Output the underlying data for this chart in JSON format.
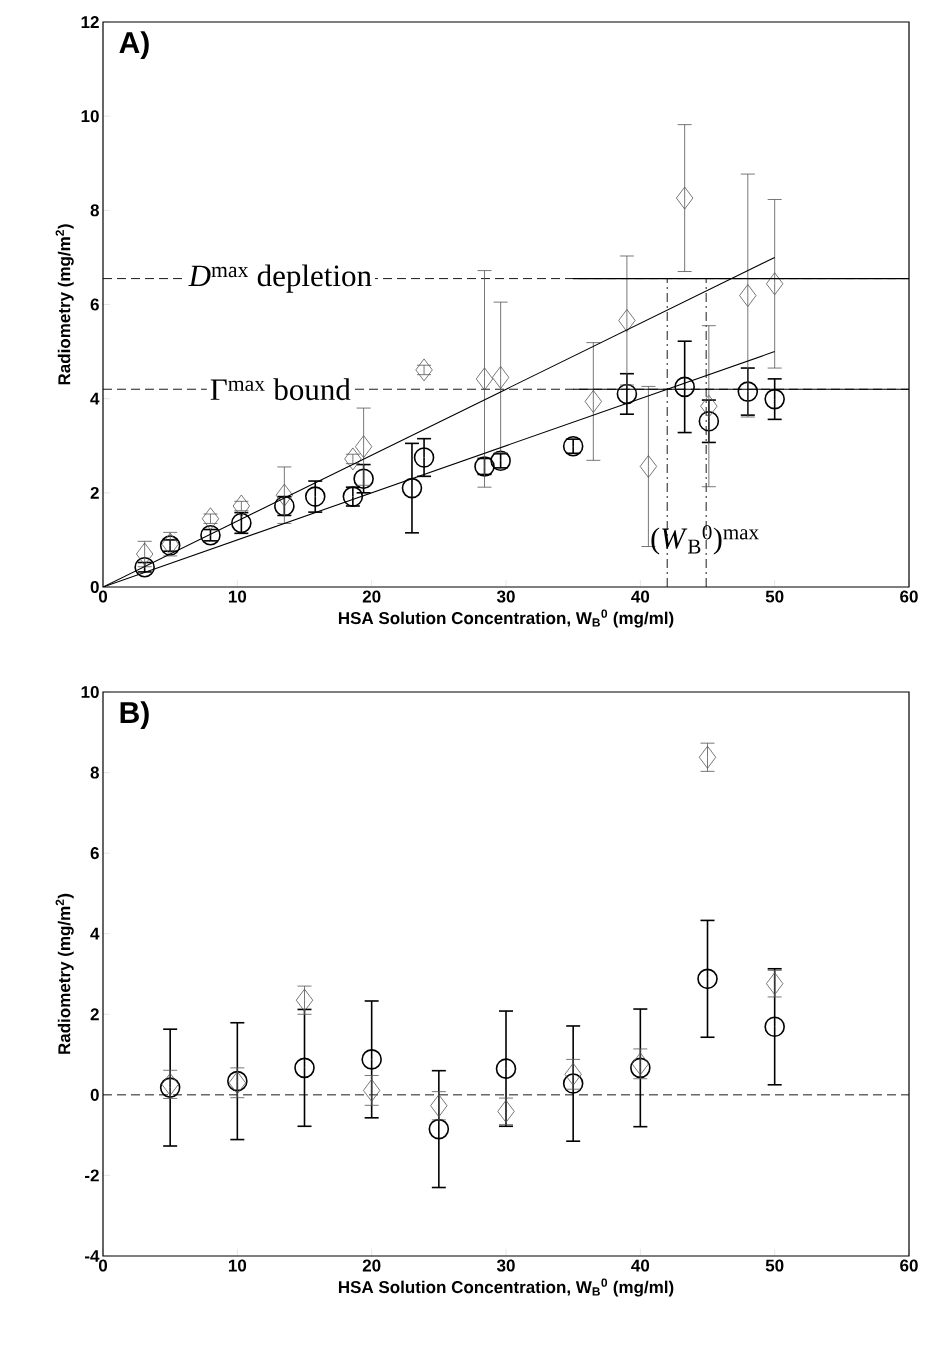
{
  "chart_data": [
    {
      "type": "scatter",
      "xlabel": "HSA Solution Concentration, W$_{B}$$^{0}$ (mg/ml)",
      "ylabel": "Radiometry (mg/m$^{2}$)",
      "xlim": [
        0,
        60
      ],
      "ylim": [
        0,
        12
      ],
      "xticks": [
        0,
        10,
        20,
        30,
        40,
        50,
        60
      ],
      "yticks": [
        0,
        2,
        4,
        6,
        8,
        10,
        12
      ],
      "series": [
        {
          "marker": "circle",
          "color": "#000000",
          "x": [
            3.1,
            5,
            8,
            10.3,
            13.5,
            15.8,
            18.6,
            19.4,
            23,
            23.9,
            28.4,
            29.6,
            35,
            39,
            43.3,
            45.1,
            48,
            50
          ],
          "values": [
            0.42,
            0.88,
            1.1,
            1.36,
            1.72,
            1.92,
            1.92,
            2.3,
            2.1,
            2.75,
            2.56,
            2.68,
            2.99,
            4.1,
            4.25,
            3.52,
            4.15,
            3.99
          ],
          "errors": [
            0.1,
            0.12,
            0.12,
            0.22,
            0.2,
            0.33,
            0.2,
            0.3,
            0.95,
            0.4,
            0.17,
            0.15,
            0.15,
            0.43,
            0.97,
            0.45,
            0.5,
            0.43
          ]
        },
        {
          "marker": "diamond",
          "color": "#555555",
          "x": [
            3.1,
            5,
            8,
            10.3,
            13.5,
            18.6,
            19.4,
            23.9,
            28.4,
            29.6,
            36.5,
            39,
            40.6,
            43.3,
            45.1,
            48,
            50
          ],
          "values": [
            0.7,
            0.91,
            1.45,
            1.72,
            1.95,
            2.72,
            2.98,
            4.61,
            4.42,
            4.45,
            3.94,
            5.66,
            2.56,
            8.26,
            3.84,
            6.19,
            6.44
          ],
          "errors": [
            0.27,
            0.25,
            0.1,
            0.1,
            0.6,
            0.1,
            0.82,
            0.1,
            2.3,
            1.6,
            1.25,
            1.37,
            1.7,
            1.56,
            1.71,
            2.58,
            1.79
          ]
        },
        {
          "type": "line",
          "color": "#000000",
          "x": [
            0,
            50
          ],
          "values": [
            0,
            7.0
          ]
        },
        {
          "type": "line",
          "color": "#000000",
          "x": [
            0,
            50
          ],
          "values": [
            0,
            5.0
          ]
        },
        {
          "type": "line",
          "color": "#000000",
          "x": [
            35,
            60
          ],
          "values": [
            6.55,
            6.55
          ]
        },
        {
          "type": "line",
          "color": "#000000",
          "x": [
            35,
            60
          ],
          "values": [
            4.2,
            4.2
          ]
        }
      ],
      "ref_lines": [
        {
          "axis": "x",
          "value": 42,
          "line_style": "dashed"
        },
        {
          "axis": "x",
          "value": 44.9,
          "line_style": "dashed"
        },
        {
          "axis": "y",
          "value": 6.55,
          "label": "*D*$^{max}$ depletion",
          "line_style": "dashed"
        },
        {
          "axis": "y",
          "value": 4.2,
          "label": "Γ$^{max}$ bound",
          "line_style": "dashed"
        }
      ],
      "annotations": [
        "A)",
        {
          "text": "(*W*$_{B}$$^{0}$)$^{max}$",
          "x": 44.8,
          "y": 1.0
        }
      ]
    },
    {
      "type": "scatter",
      "xlabel": "HSA Solution Concentration, W$_{B}$$^{0}$ (mg/ml)",
      "ylabel": "Radiometry (mg/m$^{2}$)",
      "xlim": [
        0,
        60
      ],
      "ylim": [
        -4,
        10
      ],
      "xticks": [
        0,
        10,
        20,
        30,
        40,
        50,
        60
      ],
      "yticks": [
        -4,
        -2,
        0,
        2,
        4,
        6,
        8,
        10
      ],
      "x": [
        5,
        10,
        15,
        20,
        25,
        30,
        35,
        40,
        45,
        50
      ],
      "series": [
        {
          "marker": "circle",
          "color": "#000000",
          "values": [
            0.18,
            0.34,
            0.67,
            0.88,
            -0.85,
            0.65,
            0.28,
            0.67,
            2.88,
            1.69
          ],
          "errors": [
            1.45,
            1.45,
            1.45,
            1.45,
            1.45,
            1.43,
            1.43,
            1.46,
            1.45,
            1.44
          ]
        },
        {
          "marker": "diamond",
          "color": "#555555",
          "values": [
            0.26,
            0.3,
            2.35,
            0.11,
            -0.27,
            -0.41,
            0.51,
            0.77,
            8.38,
            2.76
          ],
          "errors": [
            0.35,
            0.37,
            0.35,
            0.37,
            0.35,
            0.33,
            0.37,
            0.37,
            0.35,
            0.33
          ]
        }
      ],
      "ref_lines": [
        {
          "axis": "y",
          "value": 0,
          "line_style": "dashed"
        }
      ],
      "annotations": [
        "B)"
      ]
    }
  ]
}
